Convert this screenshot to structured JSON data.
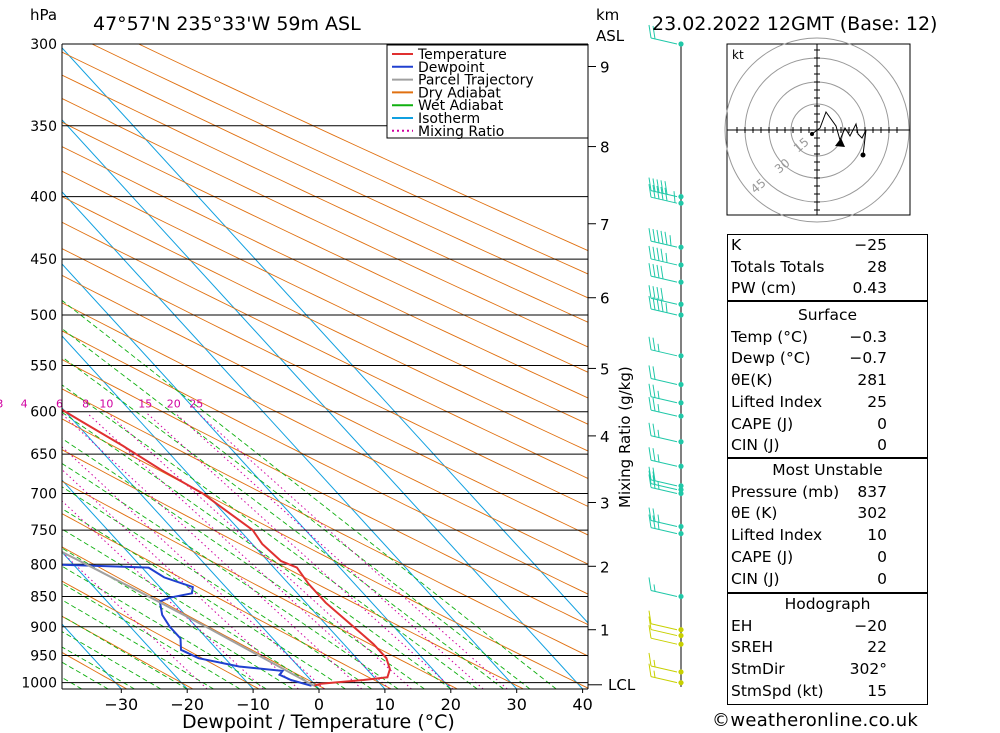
{
  "header": {
    "left_unit": "hPa",
    "location": "47°57'N  235°33'W  59m  ASL",
    "km_label": "km",
    "asl_label": "ASL",
    "date": "23.02.2022  12GMT  (Base: 12)"
  },
  "legend": {
    "items": [
      {
        "label": "Temperature",
        "color": "#e03030",
        "style": "solid"
      },
      {
        "label": "Dewpoint",
        "color": "#2040d0",
        "style": "solid"
      },
      {
        "label": "Parcel Trajectory",
        "color": "#a0a0a0",
        "style": "solid"
      },
      {
        "label": "Dry Adiabat",
        "color": "#e07010",
        "style": "solid"
      },
      {
        "label": "Wet Adiabat",
        "color": "#10b010",
        "style": "solid"
      },
      {
        "label": "Isotherm",
        "color": "#10a0e0",
        "style": "solid"
      },
      {
        "label": "Mixing Ratio",
        "color": "#d000a0",
        "style": "dotted"
      }
    ]
  },
  "chart_data": {
    "type": "line",
    "title": "47°57'N  235°33'W  59m  ASL",
    "xlabel": "Dewpoint / Temperature (°C)",
    "ylabel": "hPa",
    "xlim": [
      -40,
      40
    ],
    "ylim": [
      1000,
      300
    ],
    "x_ticks": [
      -30,
      -20,
      -10,
      0,
      10,
      20,
      30,
      40
    ],
    "x_tick_labels": [
      "−30",
      "−20",
      "−10",
      "0",
      "10",
      "20",
      "30",
      "40"
    ],
    "pressure_levels": [
      300,
      350,
      400,
      450,
      500,
      550,
      600,
      650,
      700,
      750,
      800,
      850,
      900,
      950,
      1000
    ],
    "km_ticks": [
      {
        "km": "1",
        "p": 905
      },
      {
        "km": "2",
        "p": 803
      },
      {
        "km": "3",
        "p": 712
      },
      {
        "km": "4",
        "p": 628
      },
      {
        "km": "5",
        "p": 553
      },
      {
        "km": "6",
        "p": 484
      },
      {
        "km": "7",
        "p": 421
      },
      {
        "km": "8",
        "p": 364
      },
      {
        "km": "9",
        "p": 313
      }
    ],
    "lcl": {
      "label": "LCL",
      "p": 1004
    },
    "mixing_ratio_axis_label": "Mixing Ratio (g/kg)",
    "mixing_ratio_values": [
      1,
      2,
      3,
      4,
      6,
      8,
      10,
      15,
      20,
      25
    ],
    "mixing_ratio_labels": [
      "1",
      "2",
      "3",
      "4",
      "6",
      "8",
      "10",
      "15",
      "20",
      "25"
    ],
    "mixing_ratio_label_p": 600,
    "series": [
      {
        "name": "Temperature",
        "color": "#e03030",
        "points": [
          [
            1006,
            -0.3
          ],
          [
            1002,
            1
          ],
          [
            995,
            8
          ],
          [
            990,
            12
          ],
          [
            975,
            13.5
          ],
          [
            955,
            14.5
          ],
          [
            930,
            14.5
          ],
          [
            905,
            14
          ],
          [
            860,
            13
          ],
          [
            830,
            13
          ],
          [
            805,
            13.5
          ],
          [
            795,
            12
          ],
          [
            770,
            11.5
          ],
          [
            750,
            12
          ],
          [
            720,
            10.5
          ],
          [
            700,
            9.5
          ],
          [
            670,
            6.5
          ],
          [
            640,
            4
          ],
          [
            610,
            1
          ],
          [
            590,
            -1
          ],
          [
            578,
            -1
          ],
          [
            565,
            -2.5
          ],
          [
            545,
            -4
          ],
          [
            520,
            -6.5
          ],
          [
            500,
            -8.5
          ],
          [
            480,
            -11
          ],
          [
            462,
            -13.5
          ],
          [
            450,
            -15
          ],
          [
            440,
            -14.5
          ],
          [
            432,
            -14
          ],
          [
            425,
            -15
          ],
          [
            410,
            -17
          ],
          [
            380,
            -20.5
          ],
          [
            350,
            -25
          ],
          [
            330,
            -29
          ],
          [
            310,
            -32
          ],
          [
            300,
            -34
          ]
        ]
      },
      {
        "name": "Dewpoint",
        "color": "#2040d0",
        "points": [
          [
            1006,
            -0.7
          ],
          [
            995,
            -3
          ],
          [
            985,
            -4
          ],
          [
            978,
            -3
          ],
          [
            970,
            -9
          ],
          [
            955,
            -14
          ],
          [
            940,
            -15.5
          ],
          [
            920,
            -14
          ],
          [
            900,
            -14
          ],
          [
            880,
            -13.5
          ],
          [
            858,
            -12
          ],
          [
            852,
            -10
          ],
          [
            845,
            -6
          ],
          [
            835,
            -5
          ],
          [
            820,
            -8
          ],
          [
            805,
            -9
          ],
          [
            800,
            -24
          ],
          [
            760,
            -18
          ],
          [
            750,
            -22
          ],
          [
            700,
            -24
          ],
          [
            650,
            -27
          ],
          [
            600,
            -31
          ],
          [
            595,
            -32
          ],
          [
            580,
            -31
          ],
          [
            565,
            -33
          ],
          [
            556,
            -20
          ],
          [
            540,
            -20
          ],
          [
            530,
            -15
          ],
          [
            520,
            -38
          ],
          [
            505,
            -25
          ],
          [
            500,
            -22
          ],
          [
            495,
            -15
          ],
          [
            485,
            -14
          ],
          [
            480,
            -13
          ],
          [
            477,
            -12
          ],
          [
            475,
            0
          ],
          [
            470,
            0.5
          ],
          [
            465,
            -1.5
          ],
          [
            455,
            -2
          ],
          [
            450,
            -3
          ],
          [
            445,
            -2
          ],
          [
            440,
            -1
          ],
          [
            435,
            -13
          ],
          [
            430,
            -31
          ],
          [
            425,
            -17
          ],
          [
            410,
            -18
          ],
          [
            400,
            -19
          ],
          [
            390,
            -25
          ],
          [
            385,
            -25
          ],
          [
            380,
            -21
          ],
          [
            360,
            -25
          ],
          [
            350,
            -25
          ],
          [
            330,
            -27
          ],
          [
            312,
            -29
          ],
          [
            308,
            -29
          ],
          [
            300,
            -30
          ]
        ]
      },
      {
        "name": "Parcel Trajectory",
        "color": "#a0a0a0",
        "points": [
          [
            1006,
            -0.3
          ],
          [
            990,
            -1.5
          ],
          [
            950,
            -4.5
          ],
          [
            900,
            -8.5
          ],
          [
            850,
            -13
          ],
          [
            800,
            -18
          ],
          [
            750,
            -23.5
          ],
          [
            700,
            -29.5
          ],
          [
            650,
            -36
          ],
          [
            600,
            -43
          ],
          [
            550,
            -50.5
          ],
          [
            500,
            -59
          ],
          [
            450,
            -68
          ],
          [
            400,
            -78
          ],
          [
            350,
            -89
          ],
          [
            320,
            -96
          ]
        ]
      }
    ]
  },
  "hodograph": {
    "unit": "kt",
    "ring_labels": [
      "15",
      "30",
      "45"
    ]
  },
  "wind_profile": {
    "barbs": [
      {
        "p": 300,
        "speed": 20,
        "dir": 240
      },
      {
        "p": 400,
        "speed": 60,
        "dir": 260
      },
      {
        "p": 405,
        "speed": 55,
        "dir": 260
      },
      {
        "p": 440,
        "speed": 45,
        "dir": 250
      },
      {
        "p": 455,
        "speed": 35,
        "dir": 250
      },
      {
        "p": 470,
        "speed": 40,
        "dir": 260
      },
      {
        "p": 490,
        "speed": 40,
        "dir": 260
      },
      {
        "p": 500,
        "speed": 35,
        "dir": 260
      },
      {
        "p": 540,
        "speed": 15,
        "dir": 270
      },
      {
        "p": 570,
        "speed": 20,
        "dir": 270
      },
      {
        "p": 590,
        "speed": 15,
        "dir": 270
      },
      {
        "p": 605,
        "speed": 15,
        "dir": 270
      },
      {
        "p": 635,
        "speed": 15,
        "dir": 270
      },
      {
        "p": 665,
        "speed": 15,
        "dir": 270
      },
      {
        "p": 690,
        "speed": 20,
        "dir": 280
      },
      {
        "p": 695,
        "speed": 20,
        "dir": 280
      },
      {
        "p": 700,
        "speed": 15,
        "dir": 280
      },
      {
        "p": 745,
        "speed": 15,
        "dir": 290
      },
      {
        "p": 755,
        "speed": 15,
        "dir": 290
      },
      {
        "p": 850,
        "speed": 5,
        "dir": 330
      },
      {
        "p": 905,
        "speed": 10,
        "dir": 320
      },
      {
        "p": 915,
        "speed": 10,
        "dir": 320
      },
      {
        "p": 930,
        "speed": 10,
        "dir": 320
      },
      {
        "p": 980,
        "speed": 5,
        "dir": 210
      },
      {
        "p": 1000,
        "speed": 5,
        "dir": 220
      }
    ]
  },
  "indices": {
    "general": [
      {
        "label": "K",
        "value": "−25"
      },
      {
        "label": "Totals Totals",
        "value": "28"
      },
      {
        "label": "PW (cm)",
        "value": "0.43"
      }
    ],
    "surface_title": "Surface",
    "surface": [
      {
        "label": "Temp (°C)",
        "value": "−0.3"
      },
      {
        "label": "Dewp (°C)",
        "value": "−0.7"
      },
      {
        "label": "θE(K)",
        "value": "281"
      },
      {
        "label": "Lifted Index",
        "value": "25"
      },
      {
        "label": "CAPE (J)",
        "value": "0"
      },
      {
        "label": "CIN (J)",
        "value": "0"
      }
    ],
    "mu_title": "Most Unstable",
    "mu": [
      {
        "label": "Pressure (mb)",
        "value": "837"
      },
      {
        "label": "θE (K)",
        "value": "302"
      },
      {
        "label": "Lifted Index",
        "value": "10"
      },
      {
        "label": "CAPE (J)",
        "value": "0"
      },
      {
        "label": "CIN (J)",
        "value": "0"
      }
    ],
    "hodo_title": "Hodograph",
    "hodo": [
      {
        "label": "EH",
        "value": "−20"
      },
      {
        "label": "SREH",
        "value": "22"
      },
      {
        "label": "StmDir",
        "value": "302°"
      },
      {
        "label": "StmSpd (kt)",
        "value": "15"
      }
    ]
  },
  "footer": {
    "copyright_symbol": "©",
    "site": "weatheronline.co.uk"
  }
}
